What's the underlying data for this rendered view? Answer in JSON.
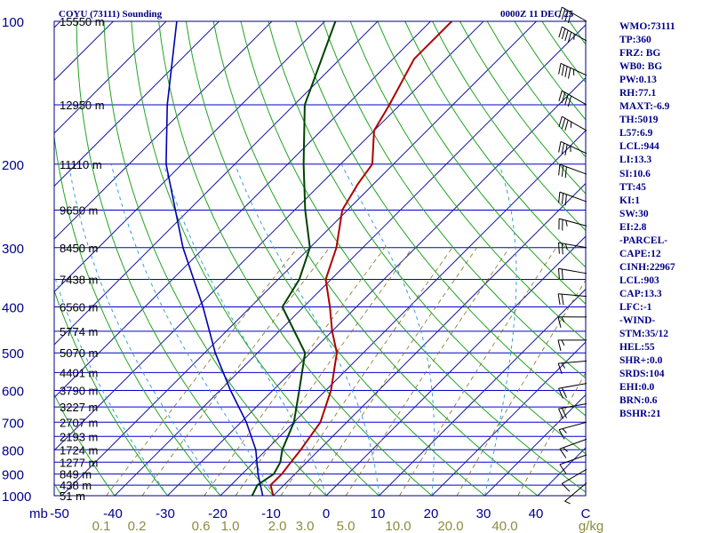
{
  "header": {
    "station": "COYU (73111) Sounding",
    "time": "0000Z 11 DEC 25"
  },
  "indices": [
    "WMO:73111",
    "TP:360",
    "FRZ: BG",
    "WB0: BG",
    "PW:0.13",
    "RH:77.1",
    "MAXT:-6.9",
    "TH:5019",
    "L57:6.9",
    "LCL:944",
    "LI:13.3",
    "SI:10.6",
    "TT:45",
    "KI:1",
    "SW:30",
    "EI:2.8",
    "-PARCEL-",
    "CAPE:12",
    "CINH:22967",
    "LCL:903",
    "CAP:13.3",
    "LFC:-1",
    "-WIND-",
    "STM:35/12",
    "HEL:55",
    "SHR+:0.0",
    "SRDS:104",
    "EHI:0.0",
    "BRN:0.6",
    "BSHR:21"
  ],
  "colors": {
    "frame": "#000080",
    "isobar": "#0000cd",
    "isotherm": "#1a1aa0",
    "dry_adiabat": "#22a322",
    "moist_adiabat": "#3a9fd6",
    "mixing_ratio": "#807020",
    "temperature": "#b00000",
    "dewpoint": "#004000",
    "parcel": "#0000b0",
    "label": "#00008b",
    "mixing_label": "#8b8b40"
  },
  "chart_data": {
    "type": "skew-t",
    "ylabel": "mb",
    "xlabel": "C",
    "pressure_ticks": [
      100,
      200,
      300,
      400,
      500,
      600,
      700,
      800,
      900,
      1000
    ],
    "height_labels": [
      {
        "p": 100,
        "h": "15550 m"
      },
      {
        "p": 150,
        "h": "12950 m"
      },
      {
        "p": 200,
        "h": "11110 m"
      },
      {
        "p": 250,
        "h": "9650 m"
      },
      {
        "p": 300,
        "h": "8450 m"
      },
      {
        "p": 350,
        "h": "7438 m"
      },
      {
        "p": 400,
        "h": "6560 m"
      },
      {
        "p": 450,
        "h": "5774 m"
      },
      {
        "p": 500,
        "h": "5070 m"
      },
      {
        "p": 550,
        "h": "4401 m"
      },
      {
        "p": 600,
        "h": "3790 m"
      },
      {
        "p": 650,
        "h": "3227 m"
      },
      {
        "p": 700,
        "h": "2707 m"
      },
      {
        "p": 750,
        "h": "2193 m"
      },
      {
        "p": 800,
        "h": "1724 m"
      },
      {
        "p": 850,
        "h": "1277 m"
      },
      {
        "p": 900,
        "h": "849 m"
      },
      {
        "p": 950,
        "h": "438 m"
      },
      {
        "p": 1000,
        "h": "51 m"
      }
    ],
    "temp_ticks": [
      "-50",
      "-40",
      "-30",
      "-20",
      "-10",
      "0",
      "10",
      "20",
      "30",
      "40",
      "C"
    ],
    "mixing_ratio_labels": [
      "0.1",
      "0.2",
      "0.6",
      "1.0",
      "2.0",
      "3.0",
      "5.0",
      "10.0",
      "20.0",
      "40.0",
      "g/kg"
    ],
    "temperature": [
      {
        "p": 1000,
        "t": -10
      },
      {
        "p": 950,
        "t": -12.5
      },
      {
        "p": 900,
        "t": -12.5
      },
      {
        "p": 850,
        "t": -13
      },
      {
        "p": 800,
        "t": -13.5
      },
      {
        "p": 700,
        "t": -15
      },
      {
        "p": 600,
        "t": -19
      },
      {
        "p": 500,
        "t": -25
      },
      {
        "p": 450,
        "t": -30
      },
      {
        "p": 400,
        "t": -35
      },
      {
        "p": 350,
        "t": -41
      },
      {
        "p": 300,
        "t": -45
      },
      {
        "p": 250,
        "t": -51
      },
      {
        "p": 220,
        "t": -53
      },
      {
        "p": 200,
        "t": -54
      },
      {
        "p": 170,
        "t": -60
      },
      {
        "p": 150,
        "t": -62
      },
      {
        "p": 120,
        "t": -66
      },
      {
        "p": 100,
        "t": -66
      }
    ],
    "dewpoint": [
      {
        "p": 1000,
        "t": -14
      },
      {
        "p": 950,
        "t": -15
      },
      {
        "p": 900,
        "t": -14
      },
      {
        "p": 850,
        "t": -15
      },
      {
        "p": 800,
        "t": -17
      },
      {
        "p": 700,
        "t": -20
      },
      {
        "p": 600,
        "t": -25
      },
      {
        "p": 500,
        "t": -31
      },
      {
        "p": 400,
        "t": -44
      },
      {
        "p": 350,
        "t": -46
      },
      {
        "p": 300,
        "t": -50
      },
      {
        "p": 250,
        "t": -58
      },
      {
        "p": 200,
        "t": -67
      },
      {
        "p": 150,
        "t": -78
      },
      {
        "p": 100,
        "t": -88
      }
    ],
    "parcel": [
      {
        "p": 1000,
        "t": -12
      },
      {
        "p": 900,
        "t": -17
      },
      {
        "p": 800,
        "t": -22
      },
      {
        "p": 700,
        "t": -29
      },
      {
        "p": 600,
        "t": -38
      },
      {
        "p": 500,
        "t": -48
      },
      {
        "p": 400,
        "t": -59
      },
      {
        "p": 300,
        "t": -74
      },
      {
        "p": 200,
        "t": -93
      },
      {
        "p": 150,
        "t": -104
      },
      {
        "p": 100,
        "t": -118
      }
    ],
    "wind_barbs": [
      {
        "p": 100,
        "dir": 300,
        "spd": 40
      },
      {
        "p": 110,
        "dir": 300,
        "spd": 45
      },
      {
        "p": 130,
        "dir": 295,
        "spd": 45
      },
      {
        "p": 150,
        "dir": 300,
        "spd": 40
      },
      {
        "p": 170,
        "dir": 300,
        "spd": 35
      },
      {
        "p": 190,
        "dir": 295,
        "spd": 35
      },
      {
        "p": 210,
        "dir": 290,
        "spd": 30
      },
      {
        "p": 240,
        "dir": 290,
        "spd": 30
      },
      {
        "p": 270,
        "dir": 285,
        "spd": 25
      },
      {
        "p": 300,
        "dir": 280,
        "spd": 25
      },
      {
        "p": 340,
        "dir": 280,
        "spd": 20
      },
      {
        "p": 380,
        "dir": 275,
        "spd": 20
      },
      {
        "p": 420,
        "dir": 270,
        "spd": 15
      },
      {
        "p": 470,
        "dir": 270,
        "spd": 15
      },
      {
        "p": 520,
        "dir": 265,
        "spd": 15
      },
      {
        "p": 580,
        "dir": 260,
        "spd": 20
      },
      {
        "p": 640,
        "dir": 260,
        "spd": 20
      },
      {
        "p": 700,
        "dir": 255,
        "spd": 15
      },
      {
        "p": 760,
        "dir": 250,
        "spd": 15
      },
      {
        "p": 820,
        "dir": 250,
        "spd": 10
      },
      {
        "p": 880,
        "dir": 240,
        "spd": 10
      },
      {
        "p": 940,
        "dir": 230,
        "spd": 5
      }
    ]
  }
}
